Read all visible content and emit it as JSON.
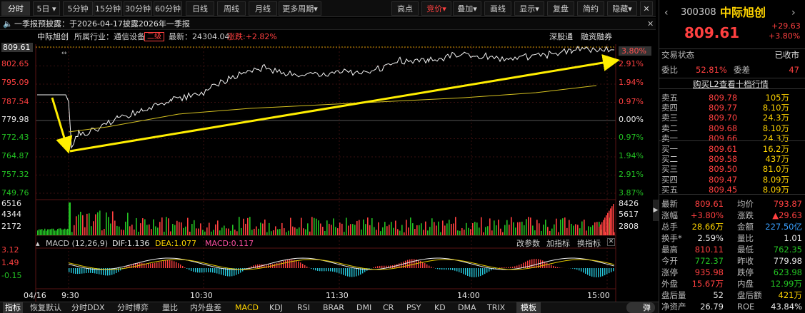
{
  "toolbar": {
    "period_buttons": [
      "分时",
      "5日",
      "5分钟",
      "15分钟",
      "30分钟",
      "60分钟",
      "日线",
      "周线",
      "月线",
      "更多周期"
    ],
    "right_buttons": [
      "高点",
      "竞价",
      "叠加",
      "画线",
      "显示",
      "复盘",
      "简约",
      "隐藏"
    ],
    "close_icon": "close-icon"
  },
  "notice": {
    "icon": "speaker-icon",
    "text": "一季报预披露：于2026-04-17披露2026年一季报"
  },
  "info_bar": {
    "name": "中际旭创",
    "industry_label": "所属行业：通信设备",
    "tag": "二级",
    "latest_label": "最新：24304.04",
    "change_label": "涨跌:+2.82%",
    "links": [
      "深股通",
      "融资融券"
    ]
  },
  "price_axis": {
    "left": [
      "809.61",
      "802.65",
      "795.09",
      "787.54",
      "779.98",
      "772.43",
      "764.87",
      "757.32",
      "749.76"
    ],
    "right": [
      "3.80%",
      "2.91%",
      "1.94%",
      "0.97%",
      "0.00%",
      "0.97%",
      "1.94%",
      "2.91%",
      "3.87%"
    ]
  },
  "volume_axis": {
    "left": [
      "6516",
      "4344",
      "2172"
    ],
    "right": [
      "8426",
      "5617",
      "2808"
    ]
  },
  "macd": {
    "title": "MACD (12,26,9)",
    "dif": "DIF:1.136",
    "dea": "DEA:1.077",
    "macd": "MACD:0.117",
    "links": [
      "改参数",
      "加指标",
      "换指标"
    ],
    "axis": [
      "3.12",
      "1.49",
      "-0.15"
    ]
  },
  "time_axis": [
    "04/16",
    "9:30",
    "10:30",
    "11:30",
    "14:00",
    "15:00"
  ],
  "bottom_tabs": [
    "指标",
    "恢复默认",
    "分时DDX",
    "分时博弈",
    "量比",
    "内外盘差",
    "MACD",
    "KDJ",
    "RSI",
    "BRAR",
    "DMI",
    "CR",
    "PSY",
    "KD",
    "DMA",
    "TRIX",
    "模板",
    "弹"
  ],
  "quote": {
    "code": "300308",
    "name": "中际旭创",
    "price": "809.61",
    "change": "+29.63",
    "pct": "+3.80%",
    "trade_state_label": "交易状态",
    "trade_state": "已收市",
    "ratio_label": "委比",
    "ratio": "52.81%",
    "diff_label": "委差",
    "diff": "47",
    "l2_banner": "购买L2查看十档行情",
    "asks": [
      {
        "label": "卖五",
        "price": "809.78",
        "vol": "105万"
      },
      {
        "label": "卖四",
        "price": "809.77",
        "vol": "8.10万"
      },
      {
        "label": "卖三",
        "price": "809.70",
        "vol": "24.3万"
      },
      {
        "label": "卖二",
        "price": "809.68",
        "vol": "8.10万"
      },
      {
        "label": "卖一",
        "price": "809.66",
        "vol": "24.3万"
      }
    ],
    "bids": [
      {
        "label": "买一",
        "price": "809.61",
        "vol": "16.2万"
      },
      {
        "label": "买二",
        "price": "809.58",
        "vol": "437万"
      },
      {
        "label": "买三",
        "price": "809.50",
        "vol": "81.0万"
      },
      {
        "label": "买四",
        "price": "809.47",
        "vol": "8.09万"
      },
      {
        "label": "买五",
        "price": "809.45",
        "vol": "8.09万"
      }
    ],
    "stats": [
      {
        "l1": "最新",
        "v1": "809.61",
        "l2": "均价",
        "v2": "793.87"
      },
      {
        "l1": "涨幅",
        "v1": "+3.80%",
        "l2": "涨跌",
        "v2": "▲29.63"
      },
      {
        "l1": "总手",
        "v1": "28.66万",
        "l2": "金额",
        "v2": "227.50亿"
      },
      {
        "l1": "换手*",
        "v1": "2.59%",
        "l2": "量比",
        "v2": "1.01"
      },
      {
        "l1": "最高",
        "v1": "810.11",
        "l2": "最低",
        "v2": "762.35"
      },
      {
        "l1": "今开",
        "v1": "772.37",
        "l2": "昨收",
        "v2": "779.98"
      },
      {
        "l1": "涨停",
        "v1": "935.98",
        "l2": "跌停",
        "v2": "623.98"
      },
      {
        "l1": "外盘",
        "v1": "15.67万",
        "l2": "内盘",
        "v2": "12.99万"
      },
      {
        "l1": "盘后量",
        "v1": "52",
        "l2": "盘后额",
        "v2": "421万"
      },
      {
        "l1": "净资产",
        "v1": "26.79",
        "l2": "ROE",
        "v2": "43.84%"
      }
    ]
  }
}
